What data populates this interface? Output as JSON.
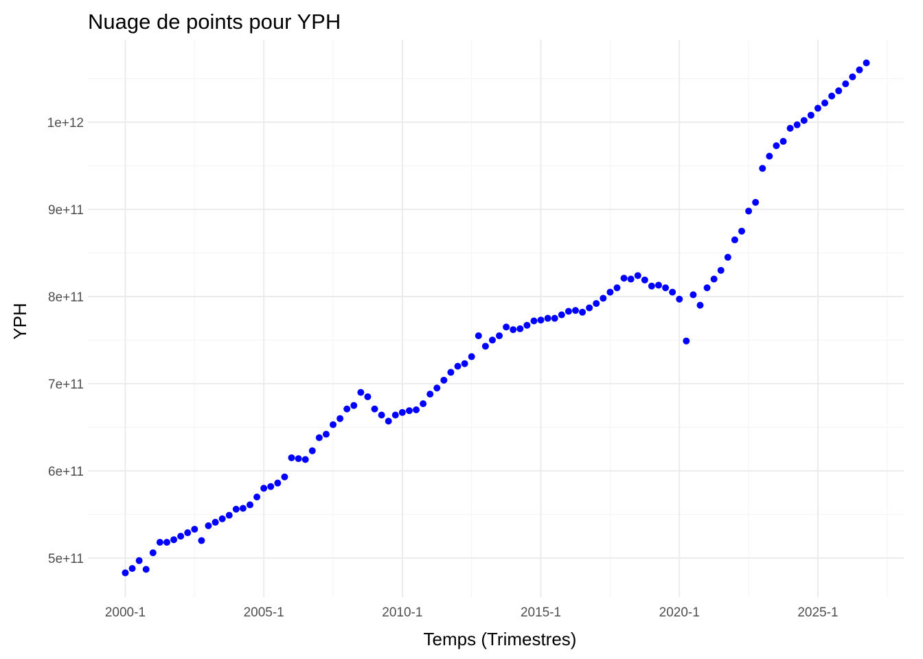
{
  "chart_data": {
    "type": "scatter",
    "title": "Nuage de points pour YPH",
    "xlabel": "Temps (Trimestres)",
    "ylabel": "YPH",
    "x_tick_labels": [
      "2000-1",
      "2005-1",
      "2010-1",
      "2015-1",
      "2020-1",
      "2025-1"
    ],
    "x_tick_values": [
      2000.0,
      2005.0,
      2010.0,
      2015.0,
      2020.0,
      2025.0
    ],
    "y_tick_labels": [
      "5e+11",
      "6e+11",
      "7e+11",
      "8e+11",
      "9e+11",
      "1e+12"
    ],
    "y_tick_values": [
      500000000000.0,
      600000000000.0,
      700000000000.0,
      800000000000.0,
      900000000000.0,
      1000000000000.0
    ],
    "xlim": [
      1998.65,
      2028.1
    ],
    "ylim": [
      455000000000.0,
      1094500000000.0
    ],
    "grid": true,
    "point_color": "#0000ff",
    "series": [
      {
        "x": [
          2000.0,
          2000.25,
          2000.5,
          2000.75,
          2001.0,
          2001.25,
          2001.5,
          2001.75,
          2002.0,
          2002.25,
          2002.5,
          2002.75,
          2003.0,
          2003.25,
          2003.5,
          2003.75,
          2004.0,
          2004.25,
          2004.5,
          2004.75,
          2005.0,
          2005.25,
          2005.5,
          2005.75,
          2006.0,
          2006.25,
          2006.5,
          2006.75,
          2007.0,
          2007.25,
          2007.5,
          2007.75,
          2008.0,
          2008.25,
          2008.5,
          2008.75,
          2009.0,
          2009.25,
          2009.5,
          2009.75,
          2010.0,
          2010.25,
          2010.5,
          2010.75,
          2011.0,
          2011.25,
          2011.5,
          2011.75,
          2012.0,
          2012.25,
          2012.5,
          2012.75,
          2013.0,
          2013.25,
          2013.5,
          2013.75,
          2014.0,
          2014.25,
          2014.5,
          2014.75,
          2015.0,
          2015.25,
          2015.5,
          2015.75,
          2016.0,
          2016.25,
          2016.5,
          2016.75,
          2017.0,
          2017.25,
          2017.5,
          2017.75,
          2018.0,
          2018.25,
          2018.5,
          2018.75,
          2019.0,
          2019.25,
          2019.5,
          2019.75,
          2020.0,
          2020.25,
          2020.5,
          2020.75,
          2021.0,
          2021.25,
          2021.5,
          2021.75,
          2022.0,
          2022.25,
          2022.5,
          2022.75,
          2023.0,
          2023.25,
          2023.5,
          2023.75,
          2024.0,
          2024.25,
          2024.5,
          2024.75,
          2025.0,
          2025.25,
          2025.5,
          2025.75,
          2026.0,
          2026.25,
          2026.5,
          2026.75
        ],
        "y": [
          483000000000.0,
          488000000000.0,
          497000000000.0,
          487000000000.0,
          506000000000.0,
          518000000000.0,
          518000000000.0,
          521000000000.0,
          525000000000.0,
          529000000000.0,
          533000000000.0,
          520000000000.0,
          537000000000.0,
          541000000000.0,
          545000000000.0,
          549000000000.0,
          556000000000.0,
          557000000000.0,
          561000000000.0,
          570000000000.0,
          580000000000.0,
          582000000000.0,
          586000000000.0,
          593000000000.0,
          615000000000.0,
          614000000000.0,
          613000000000.0,
          623000000000.0,
          638000000000.0,
          642000000000.0,
          653000000000.0,
          660000000000.0,
          671000000000.0,
          675000000000.0,
          690000000000.0,
          685000000000.0,
          671000000000.0,
          664000000000.0,
          657000000000.0,
          664000000000.0,
          667000000000.0,
          669000000000.0,
          670000000000.0,
          677000000000.0,
          688000000000.0,
          695000000000.0,
          704000000000.0,
          713000000000.0,
          720000000000.0,
          723000000000.0,
          731000000000.0,
          755000000000.0,
          743000000000.0,
          750000000000.0,
          755000000000.0,
          765000000000.0,
          762000000000.0,
          763000000000.0,
          767000000000.0,
          772000000000.0,
          773000000000.0,
          775000000000.0,
          775000000000.0,
          779000000000.0,
          783000000000.0,
          784000000000.0,
          782000000000.0,
          787000000000.0,
          792000000000.0,
          798000000000.0,
          805000000000.0,
          810000000000.0,
          821000000000.0,
          820000000000.0,
          824000000000.0,
          819000000000.0,
          812000000000.0,
          813000000000.0,
          810000000000.0,
          805000000000.0,
          797000000000.0,
          749000000000.0,
          802000000000.0,
          790000000000.0,
          810000000000.0,
          820000000000.0,
          830000000000.0,
          845000000000.0,
          865000000000.0,
          875000000000.0,
          898000000000.0,
          908000000000.0,
          947000000000.0,
          961000000000.0,
          973000000000.0,
          978000000000.0,
          993000000000.0,
          997000000000.0,
          1002000000000.0,
          1008000000000.0,
          1016000000000.0,
          1022000000000.0,
          1030000000000.0,
          1036000000000.0,
          1044000000000.0,
          1052000000000.0,
          1060000000000.0,
          1068000000000.0
        ]
      }
    ]
  }
}
